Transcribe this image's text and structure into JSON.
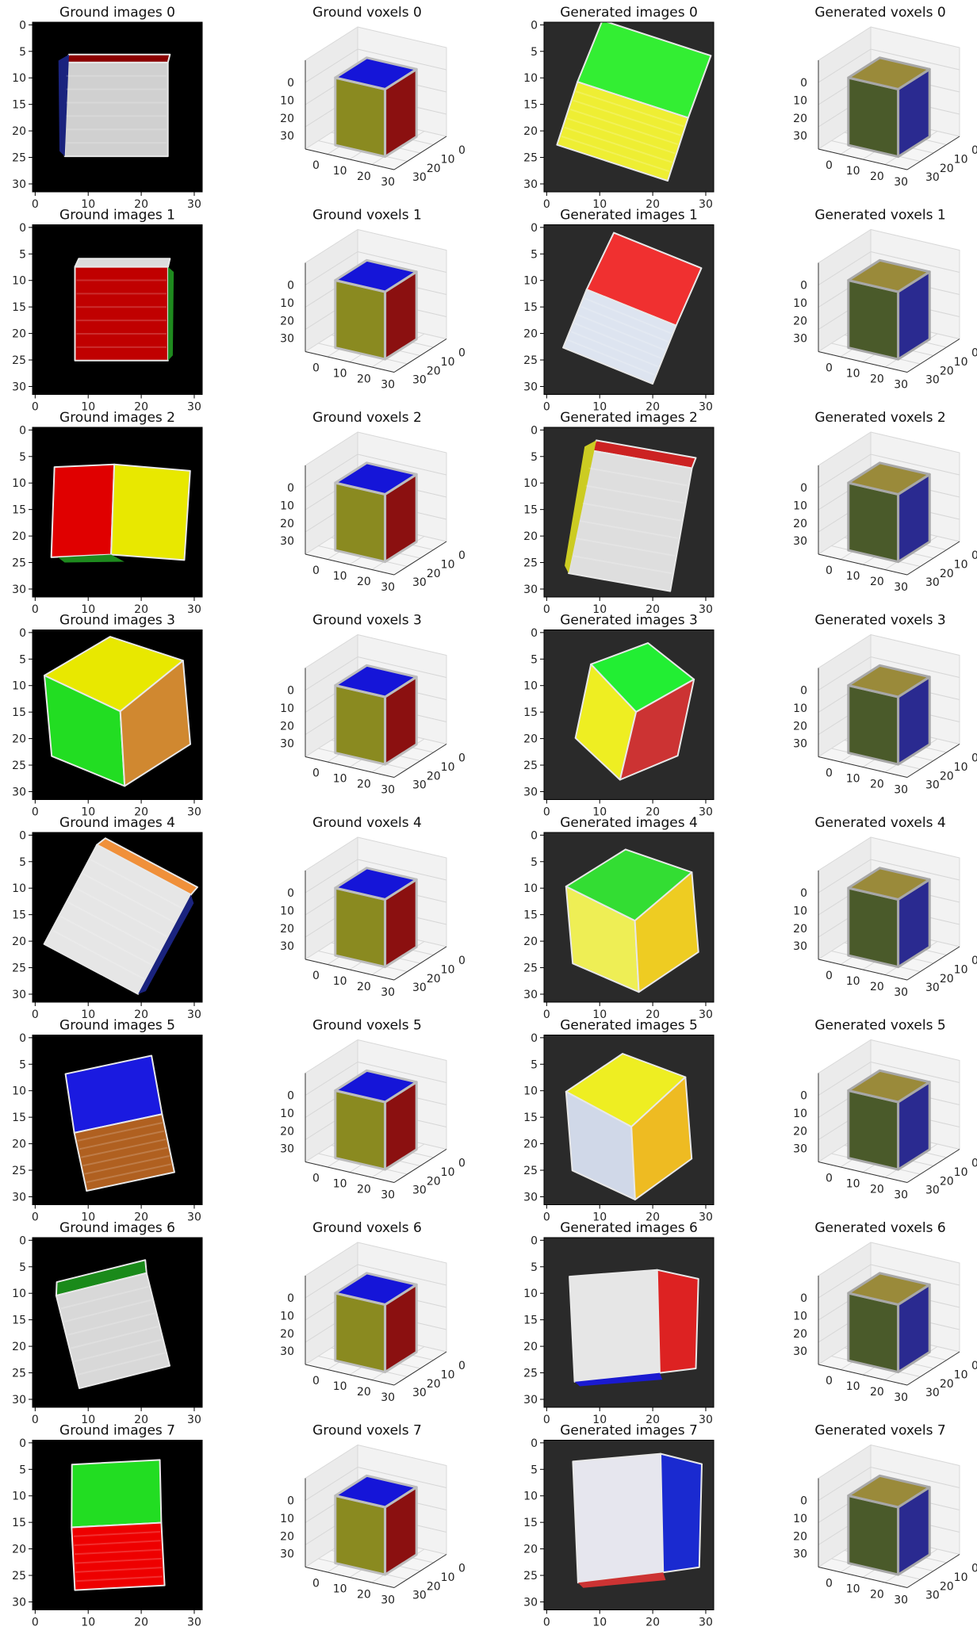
{
  "chart_data": {
    "type": "image-grid",
    "layout": {
      "rows": 8,
      "cols": 4
    },
    "column_titles": [
      "Ground images",
      "Ground voxels",
      "Generated images",
      "Generated voxels"
    ],
    "titles": [
      [
        "Ground images 0",
        "Ground voxels 0",
        "Generated images 0",
        "Generated voxels 0"
      ],
      [
        "Ground images 1",
        "Ground voxels 1",
        "Generated images 1",
        "Generated voxels 1"
      ],
      [
        "Ground images 2",
        "Ground voxels 2",
        "Generated images 2",
        "Generated voxels 2"
      ],
      [
        "Ground images 3",
        "Ground voxels 3",
        "Generated images 3",
        "Generated voxels 3"
      ],
      [
        "Ground images 4",
        "Ground voxels 4",
        "Generated images 4",
        "Generated voxels 4"
      ],
      [
        "Ground images 5",
        "Ground voxels 5",
        "Generated images 5",
        "Generated voxels 5"
      ],
      [
        "Ground images 6",
        "Ground voxels 6",
        "Generated images 6",
        "Generated voxels 6"
      ],
      [
        "Ground images 7",
        "Ground voxels 7",
        "Generated images 7",
        "Generated voxels 7"
      ]
    ],
    "image_axes": {
      "xlim": [
        0,
        31
      ],
      "ylim": [
        31,
        0
      ],
      "xticks": [
        0,
        10,
        20,
        30
      ],
      "yticks": [
        0,
        5,
        10,
        15,
        20,
        25,
        30
      ],
      "xtick_labels": [
        "0",
        "10",
        "20",
        "30"
      ],
      "ytick_labels": [
        "0",
        "5",
        "10",
        "15",
        "20",
        "25",
        "30"
      ]
    },
    "voxel_axes": {
      "z_tick_labels": [
        "30",
        "20",
        "10",
        "0"
      ],
      "x_tick_labels": [
        "0",
        "10",
        "20",
        "30"
      ],
      "y_tick_labels": [
        "0",
        "10",
        "20",
        "30"
      ]
    },
    "ground_images": [
      {
        "id": 0,
        "bg": "#000000",
        "rotation": 0,
        "faces": [
          "#d0d0d0",
          "#8b0000",
          "#1a237e"
        ]
      },
      {
        "id": 1,
        "bg": "#000000",
        "rotation": 0,
        "faces": [
          "#dcdcdc",
          "#c00000",
          "#1e8a1e"
        ]
      },
      {
        "id": 2,
        "bg": "#000000",
        "rotation": 2,
        "faces": [
          "#e00000",
          "#e8e800",
          "#1e8a1e"
        ]
      },
      {
        "id": 3,
        "bg": "#000000",
        "rotation": 0,
        "faces": [
          "#e8e800",
          "#22dd22",
          "#d08830"
        ]
      },
      {
        "id": 4,
        "bg": "#000000",
        "rotation": 28,
        "faces": [
          "#f0903a",
          "#e6e6e6",
          "#1a237e"
        ]
      },
      {
        "id": 5,
        "bg": "#000000",
        "rotation": -12,
        "faces": [
          "#1a1ae0",
          "#b06020"
        ]
      },
      {
        "id": 6,
        "bg": "#000000",
        "rotation": -14,
        "faces": [
          "#d8d8d8",
          "#1a8a1a"
        ]
      },
      {
        "id": 7,
        "bg": "#000000",
        "rotation": -3,
        "faces": [
          "#22dd22",
          "#ee0000"
        ]
      }
    ],
    "generated_images": [
      {
        "id": 0,
        "bg": "#2a2a2a",
        "rotation": 18,
        "faces": [
          "#33ee33",
          "#eeee33"
        ]
      },
      {
        "id": 1,
        "bg": "#2a2a2a",
        "rotation": 22,
        "faces": [
          "#f03030",
          "#dde4f0"
        ]
      },
      {
        "id": 2,
        "bg": "#2a2a2a",
        "rotation": 10,
        "faces": [
          "#dedede",
          "#cc2222",
          "#cccc22"
        ]
      },
      {
        "id": 3,
        "bg": "#2a2a2a",
        "rotation": 16,
        "faces": [
          "#22ee33",
          "#eeee22",
          "#cc3333"
        ]
      },
      {
        "id": 4,
        "bg": "#2a2a2a",
        "rotation": 0,
        "faces": [
          "#33dd33",
          "#eeee55",
          "#eecc22"
        ]
      },
      {
        "id": 5,
        "bg": "#2a2a2a",
        "rotation": 0,
        "faces": [
          "#eeee22",
          "#d0d8e8",
          "#eebb22"
        ]
      },
      {
        "id": 6,
        "bg": "#2a2a2a",
        "rotation": 0,
        "faces": [
          "#e6e6e6",
          "#dd2222",
          "#1a1ad0"
        ]
      },
      {
        "id": 7,
        "bg": "#2a2a2a",
        "rotation": 0,
        "faces": [
          "#e6e6ee",
          "#1a2ad0",
          "#cc3333"
        ]
      }
    ],
    "ground_voxels": {
      "top": "#1515d8",
      "front": "#8a8a20",
      "side": "#8b1010",
      "edge": "#bdbdbd"
    },
    "generated_voxels": {
      "top": "#9a8a3a",
      "front": "#4a5a2a",
      "side": "#2a2a90",
      "edge": "#a8a8a8"
    }
  }
}
